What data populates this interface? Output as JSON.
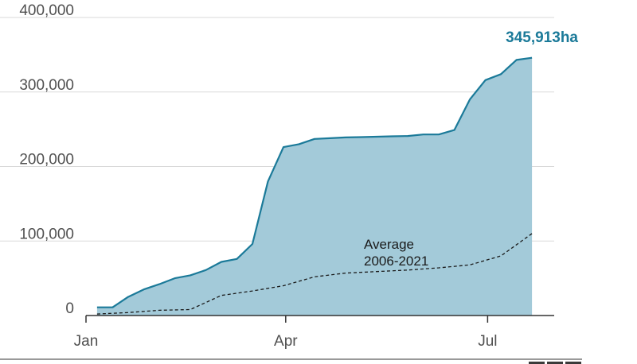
{
  "chart_data": {
    "type": "area",
    "x_axis": {
      "ticks": [
        "Jan",
        "Apr",
        "Jul"
      ]
    },
    "y_axis": {
      "ticks": [
        "0",
        "100,000",
        "200,000",
        "300,000",
        "400,000"
      ],
      "ylim": [
        0,
        400000
      ]
    },
    "grid": true,
    "series": [
      {
        "name": "",
        "style": "filled-area",
        "x": [
          "2022-01-06",
          "2022-01-13",
          "2022-01-20",
          "2022-01-27",
          "2022-02-03",
          "2022-02-10",
          "2022-02-17",
          "2022-02-24",
          "2022-03-03",
          "2022-03-10",
          "2022-03-17",
          "2022-03-24",
          "2022-03-31",
          "2022-04-07",
          "2022-04-14",
          "2022-04-21",
          "2022-04-28",
          "2022-05-05",
          "2022-05-12",
          "2022-05-19",
          "2022-05-26",
          "2022-06-02",
          "2022-06-09",
          "2022-06-16",
          "2022-06-23",
          "2022-06-30",
          "2022-07-07",
          "2022-07-14",
          "2022-07-21"
        ],
        "values": [
          11000,
          11000,
          25000,
          35000,
          42000,
          50000,
          54000,
          61000,
          72000,
          76000,
          96000,
          180000,
          226000,
          230000,
          237000,
          238000,
          239000,
          239500,
          240000,
          240500,
          241000,
          243000,
          243000,
          249000,
          290000,
          316000,
          324000,
          343000,
          345913
        ]
      },
      {
        "name": "Average 2006-2021",
        "style": "dashed-line",
        "x": [
          "2022-01-06",
          "2022-01-20",
          "2022-02-03",
          "2022-02-17",
          "2022-03-03",
          "2022-03-17",
          "2022-03-31",
          "2022-04-14",
          "2022-04-28",
          "2022-05-12",
          "2022-05-26",
          "2022-06-09",
          "2022-06-23",
          "2022-07-07",
          "2022-07-21"
        ],
        "values": [
          2000,
          4000,
          7000,
          8000,
          27000,
          33000,
          40000,
          52000,
          57000,
          59000,
          61000,
          64000,
          68000,
          80000,
          110000
        ]
      }
    ],
    "annotations": [
      {
        "text_line1": "Average",
        "text_line2": "2006-2021"
      },
      {
        "text": "345,913ha"
      }
    ],
    "colors": {
      "fill": "#a3cad9",
      "line": "#1b7a99",
      "average": "#1a1a1a",
      "grid": "#d9d9d9",
      "axis": "#333333"
    }
  }
}
